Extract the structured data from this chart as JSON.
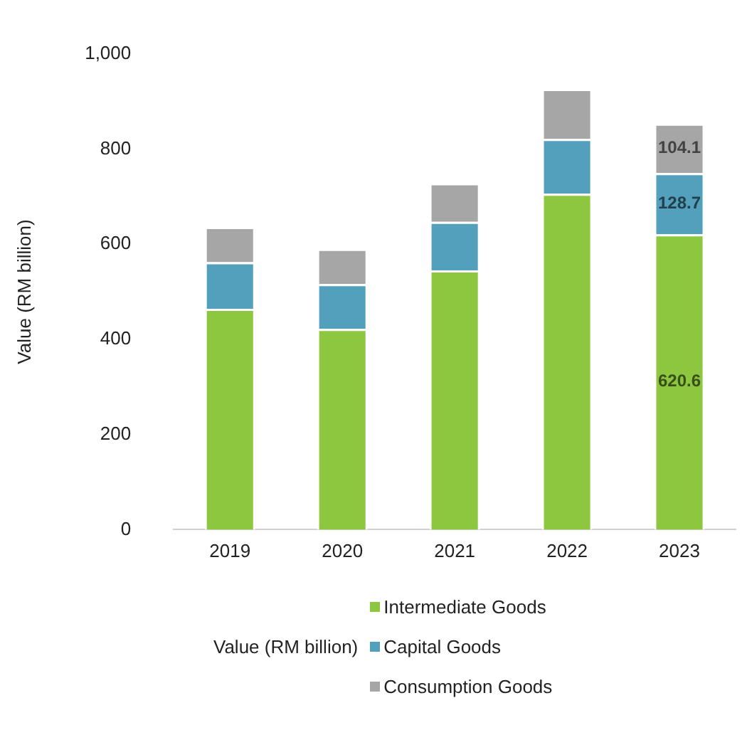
{
  "chart_data": {
    "type": "bar",
    "stacked": true,
    "ylabel": "Value (RM billion)",
    "legend_title": "Value (RM billion)",
    "legend": "bottom",
    "grid": false,
    "categories": [
      "2019",
      "2020",
      "2021",
      "2022",
      "2023"
    ],
    "ylim": [
      0,
      1000
    ],
    "yticks": [
      0,
      {
        "value": 200,
        "label": "200"
      },
      {
        "value": 400,
        "label": "400"
      },
      {
        "value": 600,
        "label": "600"
      },
      {
        "value": 800,
        "label": "800"
      },
      {
        "value": 1000,
        "label": "1,000"
      }
    ],
    "series": [
      {
        "name": "Intermediate Goods",
        "color": "#8dc63f",
        "values": [
          464,
          422,
          545,
          706,
          620.6
        ],
        "value_labels": [
          null,
          null,
          null,
          null,
          "620.6"
        ]
      },
      {
        "name": "Capital Goods",
        "color": "#52a0bb",
        "values": [
          98,
          94,
          102,
          115,
          128.7
        ],
        "value_labels": [
          null,
          null,
          null,
          null,
          "128.7"
        ]
      },
      {
        "name": "Consumption Goods",
        "color": "#a6a6a6",
        "values": [
          74,
          74,
          81,
          105,
          104.1
        ],
        "value_labels": [
          null,
          null,
          null,
          null,
          "104.1"
        ]
      }
    ]
  }
}
